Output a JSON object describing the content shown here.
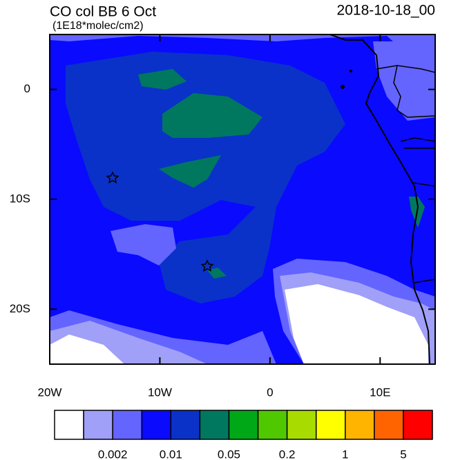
{
  "map": {
    "title": "CO col BB 6 Oct",
    "subtitle": "(1E18*molec/cm2)",
    "date": "2018-10-18_00",
    "xlim": [
      -20,
      15
    ],
    "ylim": [
      -25,
      5
    ],
    "xticks": [
      {
        "value": -20,
        "label": "20W"
      },
      {
        "value": -10,
        "label": "10W"
      },
      0,
      {
        "value": 10,
        "label": "10E"
      }
    ],
    "yticks": [
      0,
      {
        "value": -10,
        "label": "10S"
      },
      {
        "value": -20,
        "label": "20S"
      }
    ],
    "colorbar": {
      "colors": [
        "#ffffff",
        "#a0a0f8",
        "#6464ff",
        "#0a0aff",
        "#0a32c8",
        "#007860",
        "#00a818",
        "#50c800",
        "#a8dc00",
        "#ffff00",
        "#ffb400",
        "#ff6400",
        "#ff0000"
      ],
      "labels": [
        {
          "value": 0.002,
          "label": "0.002"
        },
        {
          "value": 0.01,
          "label": "0.01"
        },
        {
          "value": 0.05,
          "label": "0.05"
        },
        {
          "value": 0.2,
          "label": "0.2"
        },
        1,
        5
      ]
    }
  }
}
